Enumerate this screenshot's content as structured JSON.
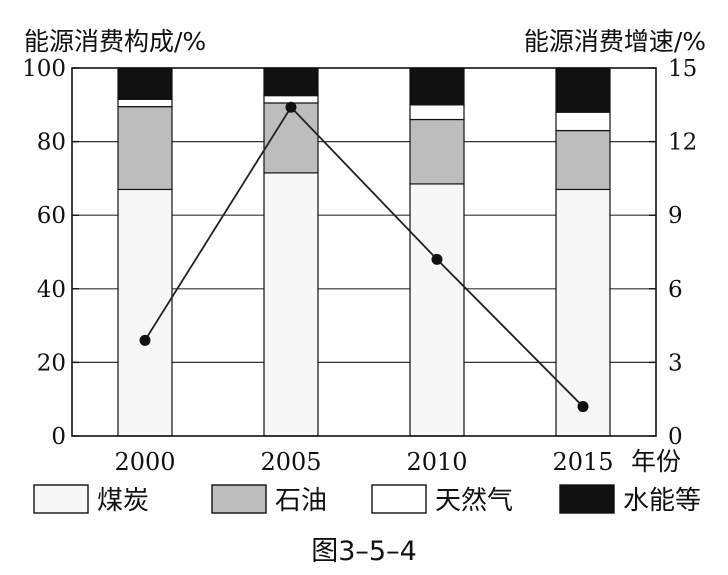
{
  "chart_data": {
    "type": "bar",
    "subtype": "stacked-bar-with-line",
    "caption": "图3–5–4",
    "left_axis": {
      "label": "能源消费构成/%",
      "ylim": [
        0,
        100
      ],
      "ticks": [
        "0",
        "20",
        "40",
        "60",
        "80",
        "100"
      ]
    },
    "right_axis": {
      "label": "能源消费增速/%",
      "ylim": [
        0,
        15
      ],
      "ticks": [
        "0",
        "3",
        "6",
        "9",
        "12",
        "15"
      ]
    },
    "x_axis": {
      "label": "年份",
      "categories": [
        "2000",
        "2005",
        "2010",
        "2015"
      ]
    },
    "grid": true,
    "series": [
      {
        "name": "煤炭",
        "type": "bar",
        "axis": "left",
        "color": "#f7f7f7",
        "values": [
          67,
          71.5,
          68.5,
          67
        ]
      },
      {
        "name": "石油",
        "type": "bar",
        "axis": "left",
        "color": "#bdbdbd",
        "values": [
          22.5,
          19,
          17.5,
          16
        ]
      },
      {
        "name": "天然气",
        "type": "bar",
        "axis": "left",
        "color": "#ffffff",
        "values": [
          2,
          2,
          4,
          5
        ]
      },
      {
        "name": "水能等",
        "type": "bar",
        "axis": "left",
        "color": "#111111",
        "values": [
          8.5,
          7.5,
          10,
          12
        ]
      },
      {
        "name": "能源消费增速",
        "type": "line",
        "axis": "right",
        "color": "#222222",
        "values": [
          3.9,
          13.4,
          7.2,
          1.2
        ]
      }
    ],
    "legend": {
      "placement": "bottom",
      "items": [
        "煤炭",
        "石油",
        "天然气",
        "水能等"
      ]
    }
  }
}
